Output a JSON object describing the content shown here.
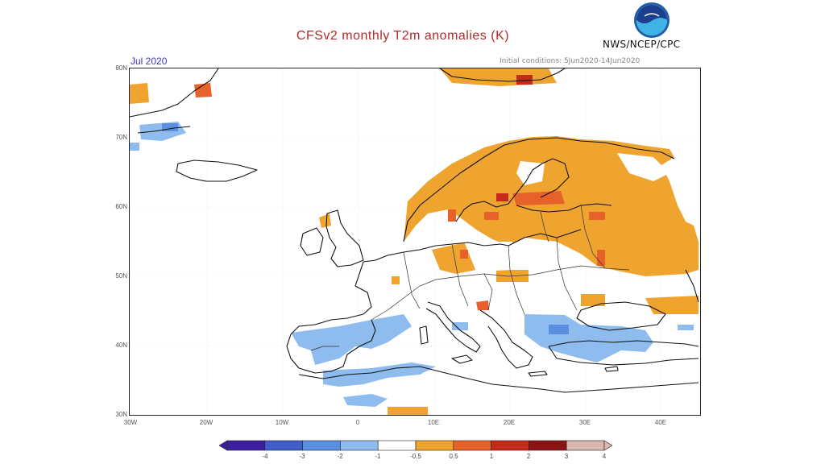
{
  "header": {
    "title": "CFSv2 monthly T2m anomalies (K)",
    "agency": "NWS/NCEP/CPC",
    "period": "Jul 2020",
    "initial_conditions": "Initial conditions: 5Jun2020-14Jun2020"
  },
  "axes": {
    "lat_labels": [
      "80N",
      "70N",
      "60N",
      "50N",
      "40N",
      "30N"
    ],
    "lon_labels": [
      "30W",
      "20W",
      "10W",
      "0",
      "10E",
      "20E",
      "30E",
      "40E"
    ]
  },
  "colorbar": {
    "labels": [
      "-4",
      "-3",
      "-2",
      "-1",
      "-0.5",
      "0.5",
      "1",
      "2",
      "3",
      "4"
    ],
    "colors": [
      "#3b1e9e",
      "#3f5ec8",
      "#5a8ede",
      "#8fbcef",
      "#ffffff",
      "#f0a430",
      "#e8602a",
      "#c62a1a",
      "#8a1414",
      "#d9b8b0"
    ]
  },
  "legend_colors": {
    "warm_1": "#f0a430",
    "warm_2": "#e8602a",
    "warm_3": "#c62a1a",
    "cool_1": "#8fbcef",
    "cool_2": "#5a8ede",
    "coastline": "#111111"
  }
}
